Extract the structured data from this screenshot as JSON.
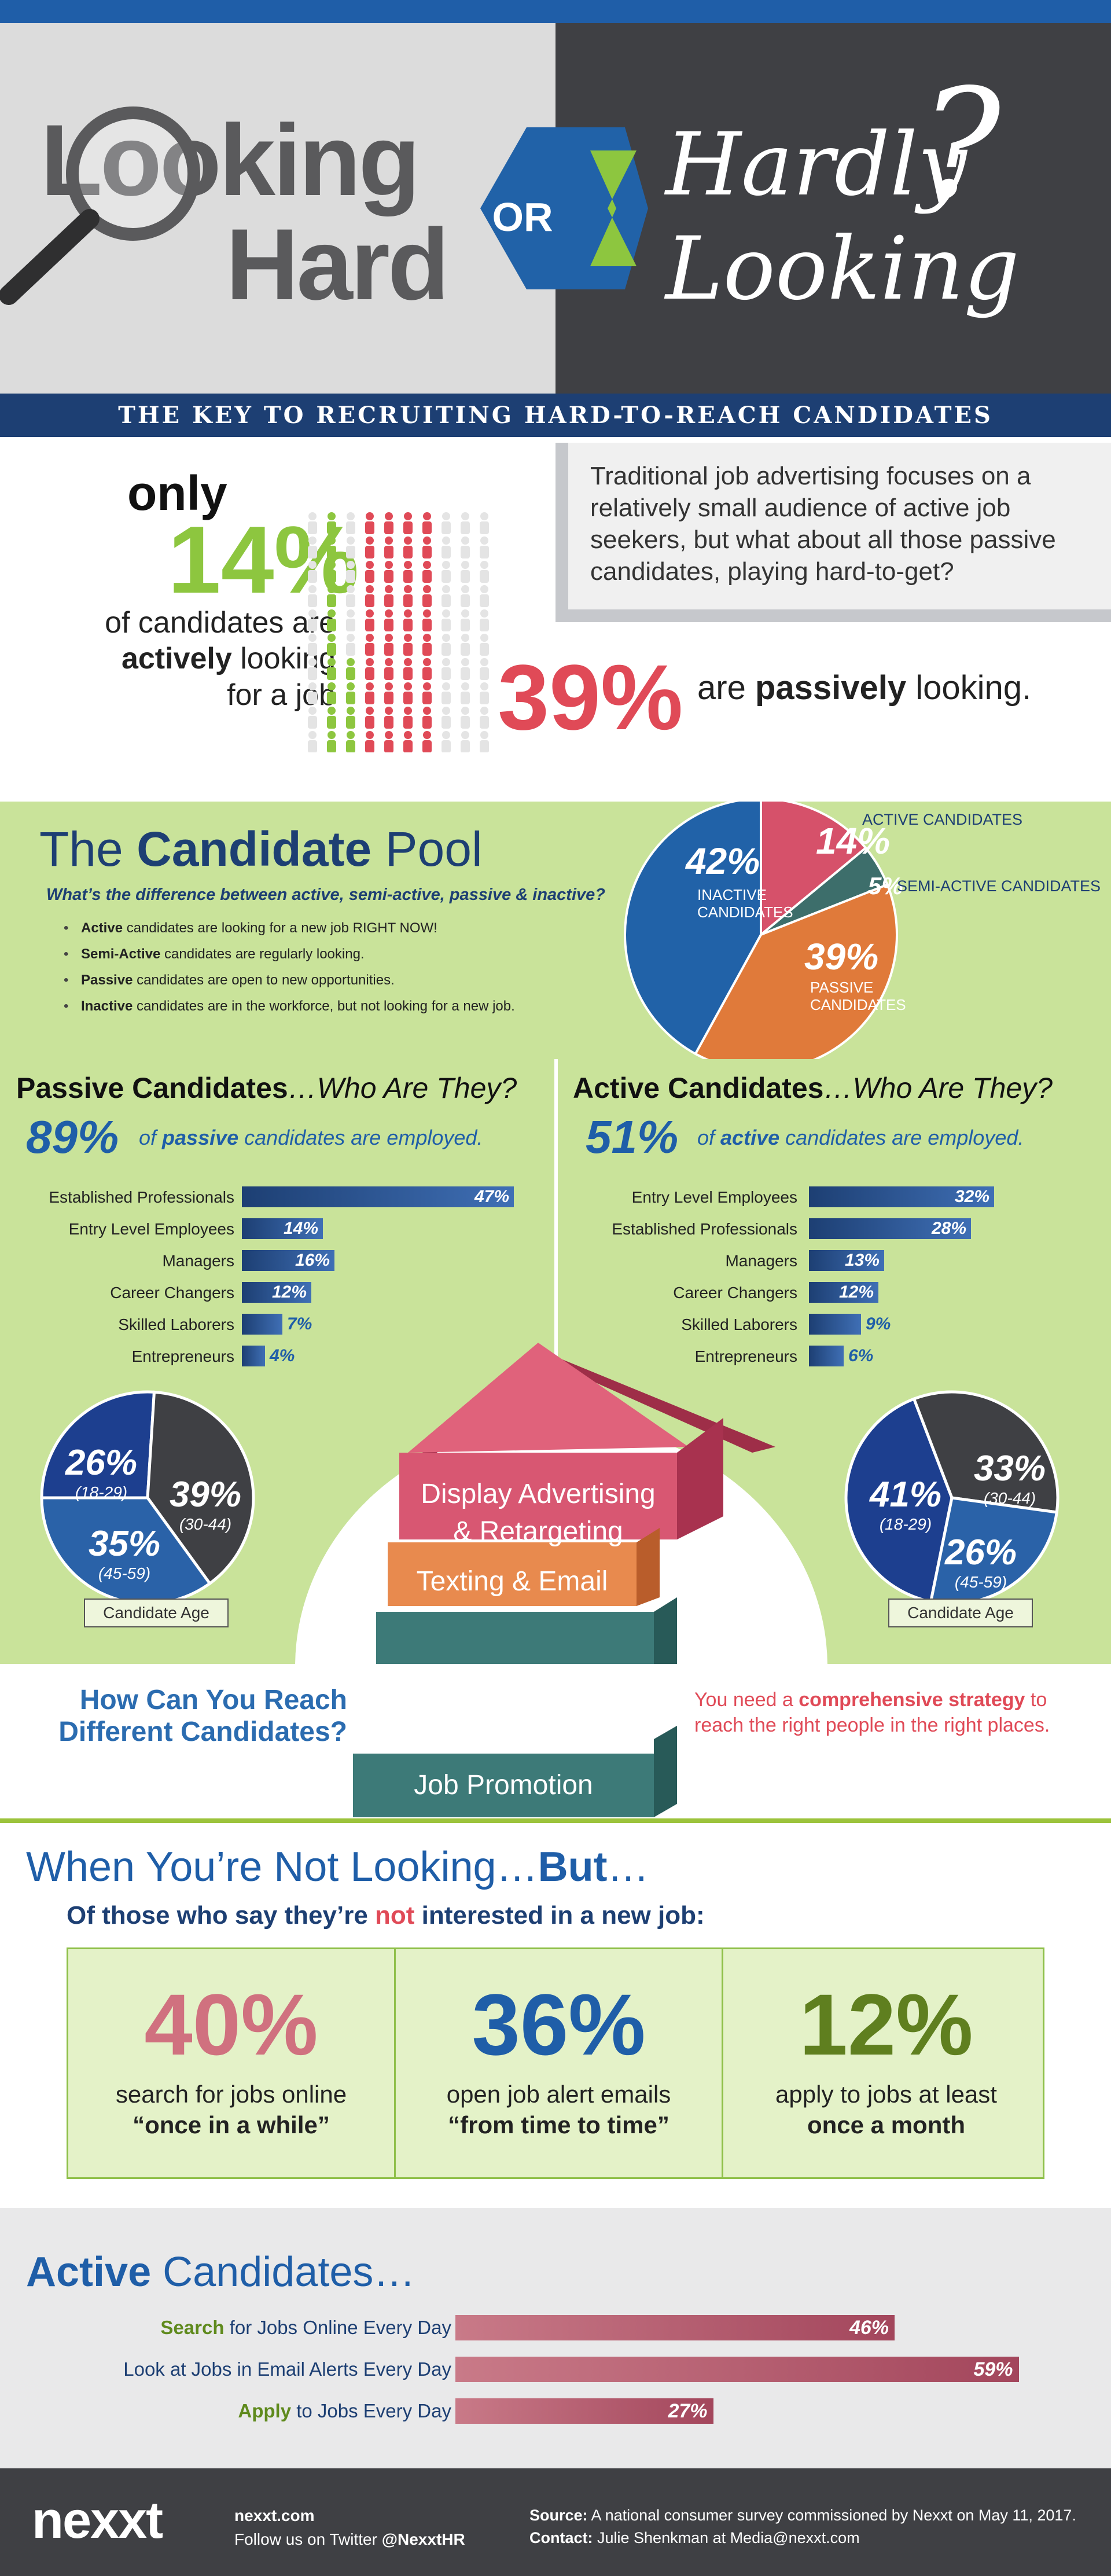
{
  "hero": {
    "left_line1": "Looking",
    "left_line2": "Hard",
    "or": "OR",
    "right_line1": "Hardly",
    "right_line2": "Looking",
    "question_mark": "?"
  },
  "key_banner": "THE KEY TO RECRUITING HARD-TO-REACH CANDIDATES",
  "intro": {
    "only": "only",
    "active_pct": "14%",
    "active_line1": "of candidates are",
    "active_line2_bold": "actively",
    "active_line2_rest": " looking",
    "active_line3": "for a job",
    "quote": "Traditional job advertising focuses on a relatively small audience of active job seekers, but what about all those passive candidates, playing hard-to-get?",
    "passive_pct": "39%",
    "passive_pre": "are ",
    "passive_bold": "passively",
    "passive_post": " looking.",
    "people_chart": {
      "active": 14,
      "passive": 39,
      "total": 100
    }
  },
  "pool": {
    "title_pre": "The ",
    "title_bold": "Candidate",
    "title_post": " Pool",
    "subtitle": "What’s the difference between active, semi-active, passive & inactive?",
    "items": [
      {
        "term": "Active",
        "text": " candidates are looking for a new job RIGHT NOW!"
      },
      {
        "term": "Semi-Active",
        "text": " candidates are regularly looking."
      },
      {
        "term": "Passive",
        "text": " candidates are open to new opportunities."
      },
      {
        "term": "Inactive",
        "text": " candidates are in the workforce, but not looking for a new job."
      }
    ]
  },
  "passive_section": {
    "title_bold": "Passive Candidates",
    "title_italic": "…Who Are They?",
    "employed_pct": "89%",
    "employed_pre": "of ",
    "employed_bold": "passive",
    "employed_post": " candidates are employed.",
    "age_label": "Candidate Age"
  },
  "active_section": {
    "title_bold": "Active Candidates",
    "title_italic": "…Who Are They?",
    "employed_pct": "51%",
    "employed_pre": "of ",
    "employed_bold": "active",
    "employed_post": " candidates are employed.",
    "age_label": "Candidate Age"
  },
  "reach": {
    "question": "How Can You Reach Different Candidates?",
    "levels": [
      "Display Advertising",
      "& Retargeting",
      "Texting & Email",
      "Job Promotion"
    ],
    "note_pre": "You need a ",
    "note_bold": "comprehensive strategy",
    "note_post": " to reach the right people in the right places."
  },
  "not_looking": {
    "title_pre": "When You’re Not Looking…",
    "title_bold": "But",
    "title_post": "…",
    "sub_pre": "Of those who say they’re ",
    "sub_red": "not",
    "sub_post": " interested in a new job:",
    "stats": [
      {
        "value": "40%",
        "line1": "search for jobs online",
        "line2": "“once in a while”",
        "color": "#d0717f"
      },
      {
        "value": "36%",
        "line1": "open job alert emails",
        "line2": "“from time to time”",
        "color": "#1f5ea8"
      },
      {
        "value": "12%",
        "line1": "apply to jobs at least",
        "line2": "once a month",
        "color": "#5f7f1f"
      }
    ]
  },
  "active_daily": {
    "title_bold": "Active",
    "title_rest": " Candidates…",
    "rows": [
      {
        "bold": "Search",
        "rest": " for Jobs Online Every Day",
        "value": 46,
        "label": "46%"
      },
      {
        "bold": "",
        "rest": "Look at Jobs in Email Alerts Every Day",
        "value": 59,
        "label": "59%",
        "bold_mid": "Email Alerts"
      },
      {
        "bold": "Apply",
        "rest": " to Jobs Every Day",
        "value": 27,
        "label": "27%"
      }
    ]
  },
  "footer": {
    "logo": "nexxt",
    "site": "nexxt.com",
    "twitter_pre": "Follow us on Twitter ",
    "twitter_handle": "@NexxtHR",
    "source_label": "Source:",
    "source_text": " A national consumer survey commissioned by Nexxt on May 11, 2017.",
    "contact_label": "Contact:",
    "contact_text": " Julie Shenkman at Media@nexxt.com"
  },
  "colors": {
    "blue": "#1f5ea8",
    "navy": "#1d3f73",
    "green": "#8dc63f",
    "red": "#e04a57",
    "orange": "#e07a3a",
    "teal": "#3d6e6b",
    "dark": "#3f4044"
  },
  "chart_data": [
    {
      "type": "pie",
      "categories": [
        "ACTIVE CANDIDATES",
        "SEMI-ACTIVE CANDIDATES",
        "PASSIVE CANDIDATES",
        "INACTIVE CANDIDATES"
      ],
      "values": [
        14,
        5,
        39,
        42
      ],
      "labels": [
        "14%",
        "5%",
        "39%",
        "42%"
      ],
      "colors": [
        "#d6516a",
        "#3d6e6b",
        "#e07a3a",
        "#2162a8"
      ]
    },
    {
      "type": "bar",
      "orientation": "horizontal",
      "categories": [
        "Established Professionals",
        "Entry Level Employees",
        "Managers",
        "Career Changers",
        "Skilled Laborers",
        "Entrepreneurs"
      ],
      "values": [
        47,
        14,
        16,
        12,
        7,
        4
      ]
    },
    {
      "type": "bar",
      "orientation": "horizontal",
      "categories": [
        "Entry Level Employees",
        "Established Professionals",
        "Managers",
        "Career Changers",
        "Skilled Laborers",
        "Entrepreneurs"
      ],
      "values": [
        32,
        28,
        13,
        12,
        9,
        6
      ]
    },
    {
      "type": "pie",
      "title": "Candidate Age",
      "categories": [
        "(18-29)",
        "(30-44)",
        "(45-59)"
      ],
      "values": [
        26,
        39,
        35
      ],
      "labels": [
        "26%",
        "39%",
        "35%"
      ],
      "colors": [
        "#1d3f8f",
        "#3f4044",
        "#2a62a8"
      ]
    },
    {
      "type": "pie",
      "title": "Candidate Age",
      "categories": [
        "(18-29)",
        "(30-44)",
        "(45-59)"
      ],
      "values": [
        41,
        33,
        26
      ],
      "labels": [
        "41%",
        "33%",
        "26%"
      ],
      "colors": [
        "#1d3f8f",
        "#3f4044",
        "#2a62a8"
      ]
    },
    {
      "type": "bar",
      "orientation": "horizontal",
      "categories": [
        "Search for Jobs Online Every Day",
        "Look at Jobs in Email Alerts Every Day",
        "Apply to Jobs Every Day"
      ],
      "values": [
        46,
        59,
        27
      ]
    }
  ]
}
